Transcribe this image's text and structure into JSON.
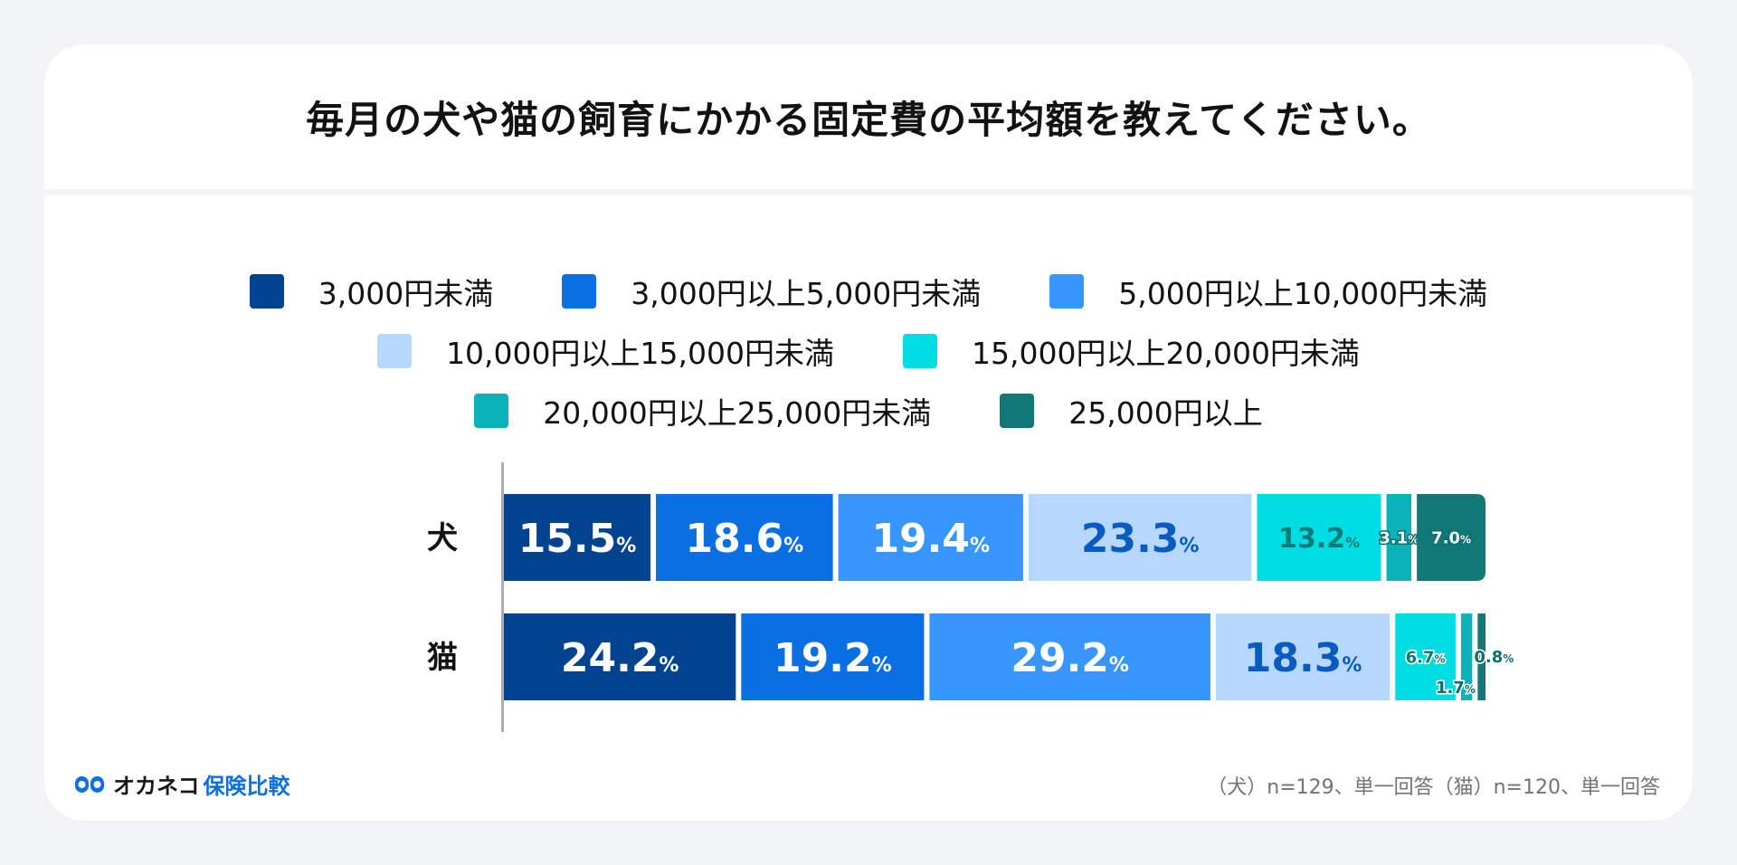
{
  "title": "毎月の犬や猫の飼育にかかる固定費の平均額を教えてください。",
  "legend_rows": [
    [
      0,
      1,
      2
    ],
    [
      3,
      4
    ],
    [
      5,
      6
    ]
  ],
  "footer": {
    "logo_main": "オカネコ",
    "logo_sub": "保険比較",
    "note": "（犬）n=129、単一回答（猫）n=120、単一回答"
  },
  "chart_data": {
    "type": "bar",
    "orientation": "horizontal",
    "stacked": true,
    "unit": "%",
    "categories": [
      "犬",
      "猫"
    ],
    "series": [
      {
        "name": "3,000円未満",
        "color": "#02438f",
        "values": [
          15.5,
          24.2
        ]
      },
      {
        "name": "3,000円以上5,000円未満",
        "color": "#0a6fe3",
        "values": [
          18.6,
          19.2
        ]
      },
      {
        "name": "5,000円以上10,000円未満",
        "color": "#3696fb",
        "values": [
          19.4,
          29.2
        ]
      },
      {
        "name": "10,000円以上15,000円未満",
        "color": "#b7d8fe",
        "values": [
          23.3,
          18.3
        ]
      },
      {
        "name": "15,000円以上20,000円未満",
        "color": "#00dde2",
        "values": [
          13.2,
          6.7
        ]
      },
      {
        "name": "20,000円以上25,000円未満",
        "color": "#0bb3b9",
        "values": [
          3.1,
          1.7
        ]
      },
      {
        "name": "25,000円以上",
        "color": "#127876",
        "values": [
          7.0,
          0.8
        ]
      }
    ],
    "xlim": [
      0,
      100
    ]
  }
}
